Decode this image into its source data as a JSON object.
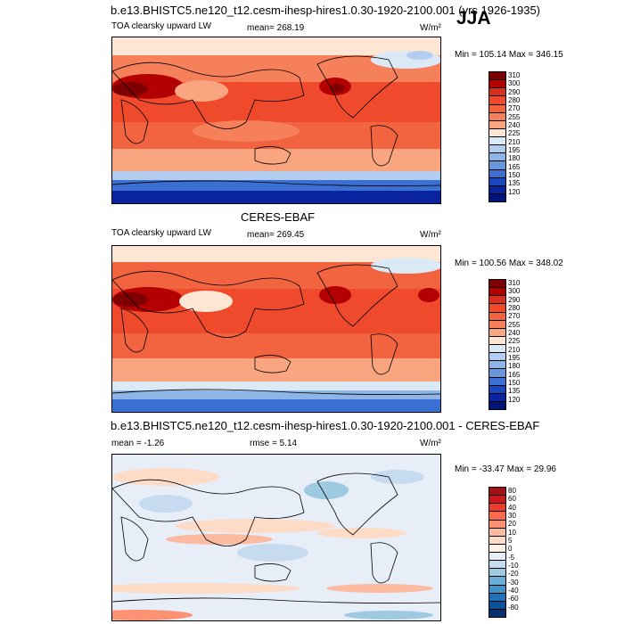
{
  "header": {
    "title": "b.e13.BHISTC5.ne120_t12.cesm-ihesp-hires1.0.30-1920-2100.001 (yrs 1926-1935)",
    "season": "JJA"
  },
  "panels": [
    {
      "id": "model",
      "variable": "TOA clearsky upward LW",
      "mean_label": "mean=",
      "mean_value": "268.19",
      "units": "W/m²",
      "minmax": "Min = 105.14 Max = 346.15",
      "levels": [
        "310",
        "300",
        "290",
        "280",
        "270",
        "255",
        "240",
        "225",
        "210",
        "195",
        "180",
        "165",
        "150",
        "135",
        "120"
      ],
      "colors": [
        "#7f0000",
        "#b30000",
        "#d7301f",
        "#ef4a2c",
        "#f26440",
        "#f6805a",
        "#f9a57f",
        "#fde6d4",
        "#dbe9f6",
        "#b2cdef",
        "#8db5e6",
        "#6a96dc",
        "#3b6fd1",
        "#1a46be",
        "#0a24a0",
        "#00157a"
      ]
    },
    {
      "id": "obs",
      "dataset": "CERES-EBAF",
      "variable": "TOA clearsky upward LW",
      "mean_label": "mean=",
      "mean_value": "269.45",
      "units": "W/m²",
      "minmax": "Min = 100.56 Max = 348.02",
      "levels": [
        "310",
        "300",
        "290",
        "280",
        "270",
        "255",
        "240",
        "225",
        "210",
        "195",
        "180",
        "165",
        "150",
        "135",
        "120"
      ],
      "colors": [
        "#7f0000",
        "#b30000",
        "#d7301f",
        "#ef4a2c",
        "#f26440",
        "#f6805a",
        "#f9a57f",
        "#fde6d4",
        "#dbe9f6",
        "#b2cdef",
        "#8db5e6",
        "#6a96dc",
        "#3b6fd1",
        "#1a46be",
        "#0a24a0",
        "#00157a"
      ]
    },
    {
      "id": "diff",
      "title": "b.e13.BHISTC5.ne120_t12.cesm-ihesp-hires1.0.30-1920-2100.001 - CERES-EBAF",
      "mean_label": "mean =",
      "mean_value": "-1.26",
      "rmse_label": "rmse =",
      "rmse_value": "5.14",
      "units": "W/m²",
      "minmax": "Min = -33.47 Max =  29.96",
      "levels": [
        "80",
        "60",
        "40",
        "30",
        "20",
        "10",
        "5",
        "0",
        "-5",
        "-10",
        "-20",
        "-30",
        "-40",
        "-60",
        "-80"
      ],
      "colors": [
        "#a50f15",
        "#cb181d",
        "#ef3b2c",
        "#fb6a4a",
        "#fc9272",
        "#fcbba1",
        "#fddbc7",
        "#fff1e8",
        "#e8eef8",
        "#c6dbef",
        "#9ecae1",
        "#6baed6",
        "#4292c6",
        "#2171b5",
        "#08519c",
        "#08306b"
      ]
    }
  ]
}
